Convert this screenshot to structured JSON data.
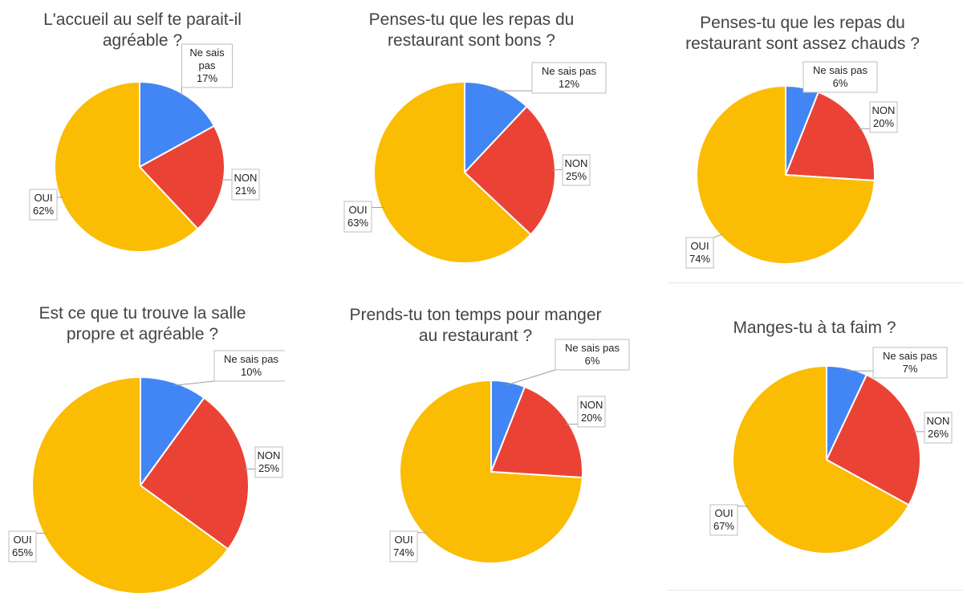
{
  "colors": {
    "oui": "#FBBC04",
    "non": "#EA4335",
    "ne_sais_pas": "#4285F4"
  },
  "chart_data": [
    {
      "type": "pie",
      "title_lines": [
        "L'accueil au self te parait-il",
        "agréable ?"
      ],
      "slices": [
        {
          "label_lines": [
            "Ne sais",
            "pas"
          ],
          "value": 17,
          "display": "17%",
          "color": "#4285F4"
        },
        {
          "label_lines": [
            "NON"
          ],
          "value": 21,
          "display": "21%",
          "color": "#EA4335"
        },
        {
          "label_lines": [
            "OUI"
          ],
          "value": 62,
          "display": "62%",
          "color": "#FBBC04"
        }
      ]
    },
    {
      "type": "pie",
      "title_lines": [
        "Penses-tu que les repas du",
        "restaurant sont bons ?"
      ],
      "slices": [
        {
          "label_lines": [
            "Ne sais pas"
          ],
          "value": 12,
          "display": "12%",
          "color": "#4285F4"
        },
        {
          "label_lines": [
            "NON"
          ],
          "value": 25,
          "display": "25%",
          "color": "#EA4335"
        },
        {
          "label_lines": [
            "OUI"
          ],
          "value": 63,
          "display": "63%",
          "color": "#FBBC04"
        }
      ]
    },
    {
      "type": "pie",
      "title_lines": [
        "Penses-tu que les repas du",
        "restaurant sont assez chauds ?"
      ],
      "slices": [
        {
          "label_lines": [
            "Ne sais pas"
          ],
          "value": 6,
          "display": "6%",
          "color": "#4285F4"
        },
        {
          "label_lines": [
            "NON"
          ],
          "value": 20,
          "display": "20%",
          "color": "#EA4335"
        },
        {
          "label_lines": [
            "OUI"
          ],
          "value": 74,
          "display": "74%",
          "color": "#FBBC04"
        }
      ]
    },
    {
      "type": "pie",
      "title_lines": [
        "Est ce que tu trouve la salle",
        "propre et agréable ?"
      ],
      "slices": [
        {
          "label_lines": [
            "Ne sais pas"
          ],
          "value": 10,
          "display": "10%",
          "color": "#4285F4"
        },
        {
          "label_lines": [
            "NON"
          ],
          "value": 25,
          "display": "25%",
          "color": "#EA4335"
        },
        {
          "label_lines": [
            "OUI"
          ],
          "value": 65,
          "display": "65%",
          "color": "#FBBC04"
        }
      ]
    },
    {
      "type": "pie",
      "title_lines": [
        "Prends-tu ton temps pour manger",
        "au restaurant ?"
      ],
      "slices": [
        {
          "label_lines": [
            "Ne sais pas"
          ],
          "value": 6,
          "display": "6%",
          "color": "#4285F4"
        },
        {
          "label_lines": [
            "NON"
          ],
          "value": 20,
          "display": "20%",
          "color": "#EA4335"
        },
        {
          "label_lines": [
            "OUI"
          ],
          "value": 74,
          "display": "74%",
          "color": "#FBBC04"
        }
      ]
    },
    {
      "type": "pie",
      "title_lines": [
        "Manges-tu à ta faim ?"
      ],
      "slices": [
        {
          "label_lines": [
            "Ne sais pas"
          ],
          "value": 7,
          "display": "7%",
          "color": "#4285F4"
        },
        {
          "label_lines": [
            "NON"
          ],
          "value": 26,
          "display": "26%",
          "color": "#EA4335"
        },
        {
          "label_lines": [
            "OUI"
          ],
          "value": 67,
          "display": "67%",
          "color": "#FBBC04"
        }
      ]
    }
  ]
}
